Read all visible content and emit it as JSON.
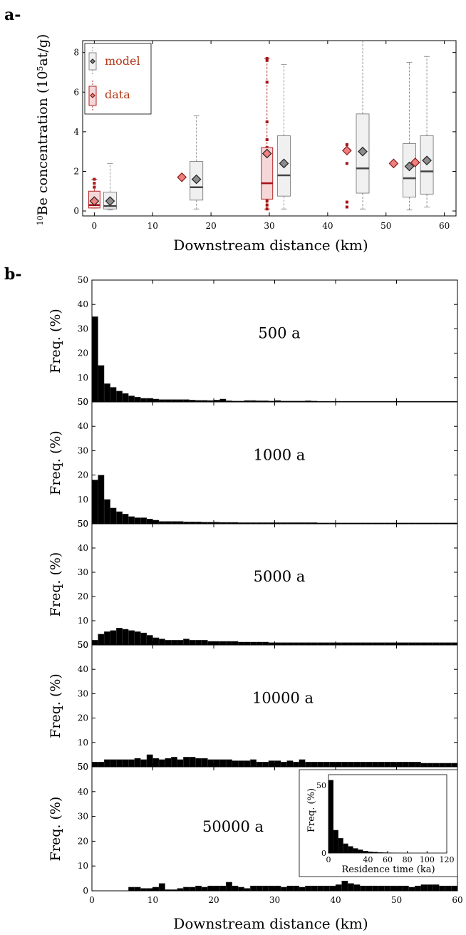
{
  "panel_labels": {
    "a": "a-",
    "b": "b-"
  },
  "colors": {
    "model_fill": "#f0f0f0",
    "model_edge": "#888888",
    "model_mean": "#8c8c8c",
    "data_fill": "#f6d7d7",
    "data_edge": "#b22222",
    "data_mean": "#f08080",
    "data_outlier": "#a50f15",
    "bar": "#000000",
    "legend_text": "#b33a1a"
  },
  "chart_data": [
    {
      "id": "a",
      "type": "box",
      "xlabel": "Downstream distance (km)",
      "ylabel_parts": {
        "sup": "10",
        "main": "Be concentration (10",
        "sup2": "5",
        "tail": "at/g)"
      },
      "xlim": [
        -2,
        62
      ],
      "ylim": [
        -0.25,
        8.6
      ],
      "xticks": [
        0,
        10,
        20,
        30,
        40,
        50,
        60
      ],
      "yticks": [
        0,
        2,
        4,
        6,
        8
      ],
      "legend": {
        "placement": "top-left",
        "entries": [
          "model",
          "data"
        ]
      },
      "model_boxes": [
        {
          "x": 2.7,
          "whisker_low": 0.05,
          "q1": 0.1,
          "median": 0.25,
          "q3": 0.95,
          "whisker_high": 2.4,
          "mean": 0.5
        },
        {
          "x": 17.5,
          "whisker_low": 0.1,
          "q1": 0.55,
          "median": 1.2,
          "q3": 2.5,
          "whisker_high": 4.8,
          "mean": 1.6
        },
        {
          "x": 32.5,
          "whisker_low": 0.1,
          "q1": 0.75,
          "median": 1.8,
          "q3": 3.8,
          "whisker_high": 7.4,
          "mean": 2.4
        },
        {
          "x": 46.0,
          "whisker_low": 0.1,
          "q1": 0.9,
          "median": 2.15,
          "q3": 4.9,
          "whisker_high": 9.5,
          "mean": 3.0
        },
        {
          "x": 54.0,
          "whisker_low": 0.05,
          "q1": 0.7,
          "median": 1.65,
          "q3": 3.4,
          "whisker_high": 7.5,
          "mean": 2.25
        },
        {
          "x": 57.0,
          "whisker_low": 0.2,
          "q1": 0.85,
          "median": 2.0,
          "q3": 3.8,
          "whisker_high": 7.8,
          "mean": 2.55
        }
      ],
      "data_boxes": [
        {
          "x": 0,
          "whisker_low": 0.15,
          "q1": 0.15,
          "median": 0.3,
          "q3": 1.0,
          "whisker_high": 1.6,
          "mean": 0.5,
          "outliers": [
            0.2,
            0.35,
            0.5,
            0.75,
            0.9,
            1.2,
            1.4,
            1.6
          ]
        },
        {
          "x": 29.6,
          "whisker_low": 0.1,
          "q1": 0.6,
          "median": 1.4,
          "q3": 3.2,
          "whisker_high": 7.7,
          "mean": 2.9,
          "outliers": [
            0.1,
            0.3,
            0.5,
            0.8,
            1.2,
            1.6,
            2.0,
            2.4,
            2.8,
            3.2,
            3.6,
            4.5,
            6.5,
            7.6,
            7.7
          ]
        }
      ],
      "data_singles": [
        {
          "x": 15.0,
          "value": 1.7
        },
        {
          "x": 43.3,
          "value": 3.05,
          "extra": [
            3.35,
            2.4,
            0.45,
            0.2
          ]
        },
        {
          "x": 51.3,
          "value": 2.4
        },
        {
          "x": 55.0,
          "value": 2.45
        }
      ]
    },
    {
      "id": "b",
      "type": "bar",
      "xlabel": "Downstream distance (km)",
      "ylabel": "Freq. (%)",
      "xlim": [
        0,
        60
      ],
      "ylim": [
        0,
        50
      ],
      "xticks": [
        0,
        10,
        20,
        30,
        40,
        50,
        60
      ],
      "yticks": [
        0,
        10,
        20,
        30,
        40,
        50
      ],
      "bin_width_km": 1,
      "panels": [
        {
          "title": "500 a",
          "values": [
            35,
            15,
            7.5,
            6,
            4.5,
            3.5,
            2.5,
            2,
            1.5,
            1.5,
            1.2,
            1,
            1,
            1,
            1,
            1,
            0.8,
            0.7,
            0.7,
            0.6,
            0.8,
            1.2,
            0.5,
            0.4,
            0.4,
            0.6,
            0.6,
            0.5,
            0.5,
            0.4,
            0.6,
            0.4,
            0.4,
            0.4,
            0.4,
            0.5,
            0.4,
            0.3,
            0.3,
            0.3,
            0.3,
            0.3,
            0.3,
            0.3,
            0.3,
            0.3,
            0.3,
            0.3,
            0.3,
            0.3,
            0.3,
            0.3,
            0.3,
            0.3,
            0.3,
            0.3,
            0.3,
            0.3,
            0.3,
            0.3
          ]
        },
        {
          "title": "1000 a",
          "values": [
            18,
            20,
            10,
            6.5,
            5,
            4,
            3,
            2.5,
            2.5,
            2,
            1.5,
            1,
            1,
            1,
            1,
            0.8,
            0.8,
            0.8,
            0.7,
            0.7,
            0.7,
            0.6,
            0.6,
            0.6,
            0.5,
            0.5,
            0.5,
            0.5,
            0.5,
            0.5,
            0.5,
            0.5,
            0.5,
            0.5,
            0.5,
            0.5,
            0.5,
            0.4,
            0.4,
            0.4,
            0.4,
            0.4,
            0.4,
            0.4,
            0.4,
            0.4,
            0.4,
            0.4,
            0.4,
            0.4,
            0.4,
            0.4,
            0.4,
            0.4,
            0.4,
            0.4,
            0.4,
            0.4,
            0.4,
            0.4
          ]
        },
        {
          "title": "5000 a",
          "values": [
            2,
            4.5,
            5.5,
            6,
            7,
            6.5,
            6,
            5.5,
            5,
            4,
            3,
            2.5,
            2,
            2,
            2,
            2.5,
            2,
            2,
            2,
            1.5,
            1.5,
            1.5,
            1.5,
            1.5,
            1.2,
            1.2,
            1.2,
            1.2,
            1.2,
            1,
            1,
            1,
            1,
            1,
            1,
            1,
            1,
            1,
            1,
            1,
            1,
            1,
            1,
            1,
            1,
            1,
            1,
            1,
            1,
            1,
            1,
            1,
            1,
            1,
            1,
            1,
            1,
            1,
            1,
            1
          ]
        },
        {
          "title": "10000 a",
          "values": [
            2,
            2,
            3,
            3,
            3,
            3,
            3,
            3.5,
            3,
            5,
            3.5,
            3,
            3.5,
            4,
            3,
            4,
            4,
            3.5,
            3.5,
            3,
            3,
            3,
            3,
            2.5,
            2.5,
            2.5,
            3,
            2,
            2,
            2.5,
            2.5,
            2,
            2.5,
            2,
            3,
            2,
            2,
            2,
            2,
            2,
            2,
            2,
            2,
            2,
            2,
            2,
            2,
            2,
            2,
            2,
            2,
            2,
            2,
            2,
            1.5,
            1.5,
            1.5,
            1.5,
            1.5,
            1.5
          ]
        },
        {
          "title": "50000 a",
          "values": [
            0,
            0,
            0,
            0,
            0,
            0,
            1.5,
            1.5,
            1,
            1,
            1.5,
            3,
            0.5,
            0.5,
            1,
            1.5,
            1.5,
            2,
            1.5,
            2,
            2,
            2,
            3.5,
            2,
            1.5,
            1,
            2,
            2,
            2,
            2,
            2,
            1.5,
            2,
            2,
            1.5,
            2,
            2,
            2,
            2,
            2,
            2.5,
            4,
            3,
            2.5,
            2,
            2,
            2,
            2,
            2,
            2,
            2,
            2,
            1.5,
            2,
            2.5,
            2.5,
            2.5,
            2,
            2,
            2
          ]
        }
      ],
      "inset": {
        "panel": "50000 a",
        "type": "bar",
        "xlabel": "Residence time (ka)",
        "ylabel": "Freq. (%)",
        "xlim": [
          0,
          120
        ],
        "ylim": [
          0,
          58
        ],
        "xticks": [
          0,
          20,
          40,
          60,
          80,
          100,
          120
        ],
        "xtick_labels": [
          "0",
          "",
          "40",
          "60",
          "80",
          "100",
          "120"
        ],
        "yticks": [
          0,
          50
        ],
        "bin_width_ka": 5,
        "values": [
          54,
          17,
          11,
          7,
          5,
          3.5,
          2.5,
          1.5,
          1,
          0.8,
          0.5,
          0.4,
          0.3,
          0.2,
          0.15,
          0.1,
          0.1,
          0.05,
          0.05,
          0.05,
          0.05,
          0.05,
          0.05,
          0.05
        ]
      }
    }
  ]
}
